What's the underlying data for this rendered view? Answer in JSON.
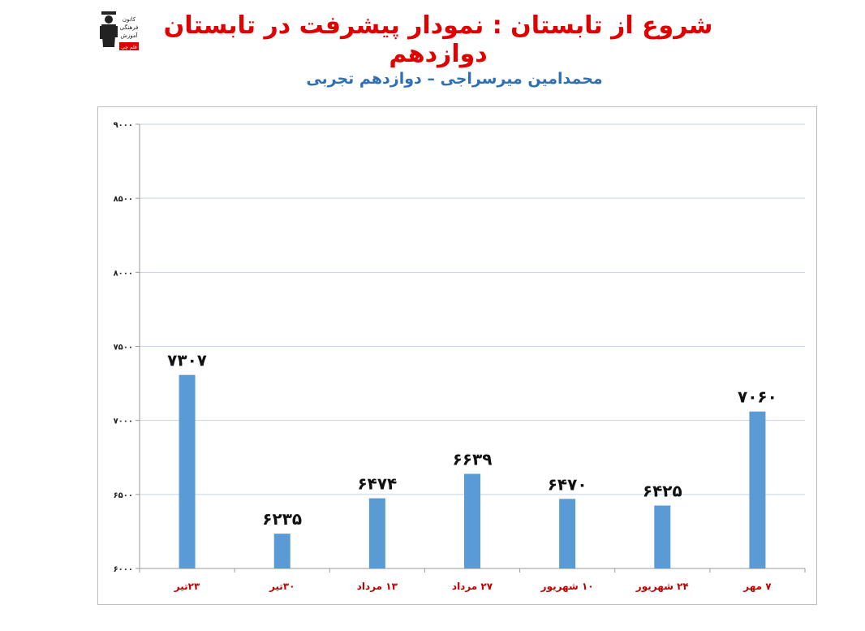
{
  "title": "شروع از تابستان : نمودار پیشرفت در تابستان دوازدهم",
  "subtitle": "محمدامین میرسراجی – دوازدهم تجربی",
  "logo": {
    "text_lines": [
      "کانون",
      "فرهنگی",
      "آموزش"
    ],
    "badge": "قلم چی"
  },
  "colors": {
    "title": "#e00000",
    "subtitle": "#2f6fb5",
    "bar": "#5b9bd5",
    "xtick": "#c00000",
    "gridline": "#c6d3e3"
  },
  "chart_data": {
    "type": "bar",
    "categories": [
      "۲۳تیر",
      "۳۰تیر",
      "۱۳ مرداد",
      "۲۷ مرداد",
      "۱۰ شهریور",
      "۲۴ شهریور",
      "۷ مهر"
    ],
    "values": [
      7307,
      6235,
      6474,
      6639,
      6470,
      6425,
      7060
    ],
    "value_labels": [
      "۷۳۰۷",
      "۶۲۳۵",
      "۶۴۷۴",
      "۶۶۳۹",
      "۶۴۷۰",
      "۶۴۲۵",
      "۷۰۶۰"
    ],
    "ylim": [
      6000,
      9000
    ],
    "yticks": [
      6000,
      6500,
      7000,
      7500,
      8000,
      8500,
      9000
    ],
    "ytick_labels": [
      "۶۰۰۰",
      "۶۵۰۰",
      "۷۰۰۰",
      "۷۵۰۰",
      "۸۰۰۰",
      "۸۵۰۰",
      "۹۰۰۰"
    ],
    "grid": true,
    "legend": "none"
  }
}
